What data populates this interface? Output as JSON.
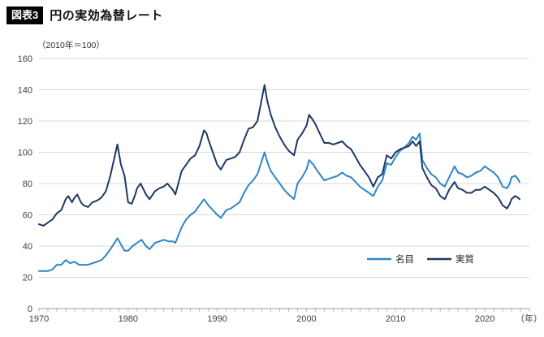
{
  "header": {
    "badge": "図表3",
    "title": "円の実効為替レート"
  },
  "chart_data": {
    "type": "line",
    "title": "円の実効為替レート",
    "subtitle_unit": "（2010年＝100）",
    "x_unit_label": "（年）",
    "xlim": [
      1970,
      2025
    ],
    "ylim": [
      0,
      160
    ],
    "y_ticks": [
      0,
      20,
      40,
      60,
      80,
      100,
      120,
      140,
      160
    ],
    "x_tick_labels": [
      1970,
      1980,
      1990,
      2000,
      2010,
      2020
    ],
    "grid": true,
    "legend": {
      "position": "inside-right",
      "items": [
        "名目",
        "実質"
      ]
    },
    "series": [
      {
        "name": "名目",
        "color": "#2E86C6",
        "points": [
          [
            1970.0,
            24
          ],
          [
            1970.5,
            24
          ],
          [
            1971.0,
            24
          ],
          [
            1971.5,
            25
          ],
          [
            1972.0,
            28
          ],
          [
            1972.5,
            28
          ],
          [
            1973.0,
            31
          ],
          [
            1973.5,
            29
          ],
          [
            1974.0,
            30
          ],
          [
            1974.5,
            28
          ],
          [
            1975.0,
            28
          ],
          [
            1975.5,
            28
          ],
          [
            1976.0,
            29
          ],
          [
            1976.5,
            30
          ],
          [
            1977.0,
            31
          ],
          [
            1977.5,
            34
          ],
          [
            1978.0,
            38
          ],
          [
            1978.8,
            45
          ],
          [
            1979.2,
            41
          ],
          [
            1979.6,
            37
          ],
          [
            1980.0,
            37
          ],
          [
            1980.5,
            40
          ],
          [
            1981.0,
            42
          ],
          [
            1981.5,
            44
          ],
          [
            1982.0,
            40
          ],
          [
            1982.4,
            38
          ],
          [
            1983.0,
            42
          ],
          [
            1983.5,
            43
          ],
          [
            1984.0,
            44
          ],
          [
            1984.5,
            43
          ],
          [
            1985.0,
            43
          ],
          [
            1985.3,
            42
          ],
          [
            1986.0,
            52
          ],
          [
            1986.5,
            57
          ],
          [
            1987.0,
            60
          ],
          [
            1987.5,
            62
          ],
          [
            1988.0,
            66
          ],
          [
            1988.5,
            70
          ],
          [
            1989.0,
            66
          ],
          [
            1989.5,
            63
          ],
          [
            1990.0,
            60
          ],
          [
            1990.4,
            58
          ],
          [
            1991.0,
            63
          ],
          [
            1991.5,
            64
          ],
          [
            1992.0,
            66
          ],
          [
            1992.5,
            68
          ],
          [
            1993.0,
            74
          ],
          [
            1993.5,
            79
          ],
          [
            1994.0,
            82
          ],
          [
            1994.5,
            86
          ],
          [
            1995.3,
            100
          ],
          [
            1995.6,
            94
          ],
          [
            1996.0,
            88
          ],
          [
            1996.5,
            84
          ],
          [
            1997.0,
            80
          ],
          [
            1997.5,
            76
          ],
          [
            1998.0,
            73
          ],
          [
            1998.6,
            70
          ],
          [
            1999.0,
            80
          ],
          [
            1999.5,
            84
          ],
          [
            2000.0,
            89
          ],
          [
            2000.3,
            95
          ],
          [
            2000.8,
            92
          ],
          [
            2001.0,
            90
          ],
          [
            2001.5,
            86
          ],
          [
            2002.0,
            82
          ],
          [
            2002.5,
            83
          ],
          [
            2003.0,
            84
          ],
          [
            2003.5,
            85
          ],
          [
            2004.0,
            87
          ],
          [
            2004.5,
            85
          ],
          [
            2005.0,
            84
          ],
          [
            2005.5,
            81
          ],
          [
            2006.0,
            78
          ],
          [
            2006.5,
            76
          ],
          [
            2007.0,
            74
          ],
          [
            2007.5,
            72
          ],
          [
            2008.0,
            78
          ],
          [
            2008.5,
            82
          ],
          [
            2009.0,
            93
          ],
          [
            2009.5,
            92
          ],
          [
            2010.0,
            97
          ],
          [
            2010.5,
            101
          ],
          [
            2011.0,
            103
          ],
          [
            2011.5,
            106
          ],
          [
            2011.9,
            110
          ],
          [
            2012.3,
            108
          ],
          [
            2012.7,
            112
          ],
          [
            2013.0,
            95
          ],
          [
            2013.5,
            90
          ],
          [
            2014.0,
            86
          ],
          [
            2014.5,
            84
          ],
          [
            2015.0,
            80
          ],
          [
            2015.5,
            78
          ],
          [
            2016.0,
            84
          ],
          [
            2016.6,
            91
          ],
          [
            2017.0,
            87
          ],
          [
            2017.5,
            86
          ],
          [
            2018.0,
            84
          ],
          [
            2018.5,
            85
          ],
          [
            2019.0,
            87
          ],
          [
            2019.5,
            88
          ],
          [
            2020.0,
            91
          ],
          [
            2020.5,
            89
          ],
          [
            2021.0,
            87
          ],
          [
            2021.5,
            84
          ],
          [
            2022.0,
            78
          ],
          [
            2022.5,
            77
          ],
          [
            2022.8,
            80
          ],
          [
            2023.0,
            84
          ],
          [
            2023.4,
            85
          ],
          [
            2023.7,
            83
          ],
          [
            2023.9,
            81
          ]
        ]
      },
      {
        "name": "実質",
        "color": "#1F3864",
        "points": [
          [
            1970.0,
            54
          ],
          [
            1970.5,
            53
          ],
          [
            1971.0,
            55
          ],
          [
            1971.5,
            57
          ],
          [
            1972.0,
            61
          ],
          [
            1972.5,
            63
          ],
          [
            1973.0,
            70
          ],
          [
            1973.3,
            72
          ],
          [
            1973.7,
            68
          ],
          [
            1974.0,
            71
          ],
          [
            1974.3,
            73
          ],
          [
            1974.7,
            68
          ],
          [
            1975.0,
            66
          ],
          [
            1975.5,
            65
          ],
          [
            1976.0,
            68
          ],
          [
            1976.5,
            69
          ],
          [
            1977.0,
            71
          ],
          [
            1977.5,
            75
          ],
          [
            1978.0,
            85
          ],
          [
            1978.8,
            105
          ],
          [
            1979.2,
            92
          ],
          [
            1979.6,
            85
          ],
          [
            1980.0,
            68
          ],
          [
            1980.4,
            67
          ],
          [
            1980.8,
            73
          ],
          [
            1981.0,
            77
          ],
          [
            1981.4,
            80
          ],
          [
            1982.0,
            73
          ],
          [
            1982.4,
            70
          ],
          [
            1983.0,
            75
          ],
          [
            1983.5,
            77
          ],
          [
            1984.0,
            78
          ],
          [
            1984.4,
            80
          ],
          [
            1985.0,
            76
          ],
          [
            1985.3,
            73
          ],
          [
            1986.0,
            88
          ],
          [
            1986.5,
            92
          ],
          [
            1987.0,
            96
          ],
          [
            1987.5,
            98
          ],
          [
            1988.0,
            104
          ],
          [
            1988.5,
            114
          ],
          [
            1988.8,
            112
          ],
          [
            1989.0,
            108
          ],
          [
            1989.5,
            100
          ],
          [
            1990.0,
            92
          ],
          [
            1990.4,
            89
          ],
          [
            1991.0,
            95
          ],
          [
            1991.5,
            96
          ],
          [
            1992.0,
            97
          ],
          [
            1992.5,
            100
          ],
          [
            1993.0,
            108
          ],
          [
            1993.5,
            115
          ],
          [
            1994.0,
            116
          ],
          [
            1994.5,
            120
          ],
          [
            1995.3,
            143
          ],
          [
            1995.6,
            133
          ],
          [
            1996.0,
            124
          ],
          [
            1996.5,
            116
          ],
          [
            1997.0,
            110
          ],
          [
            1997.5,
            105
          ],
          [
            1998.0,
            101
          ],
          [
            1998.6,
            98
          ],
          [
            1999.0,
            108
          ],
          [
            1999.5,
            112
          ],
          [
            2000.0,
            117
          ],
          [
            2000.3,
            124
          ],
          [
            2000.8,
            120
          ],
          [
            2001.0,
            118
          ],
          [
            2001.5,
            112
          ],
          [
            2002.0,
            106
          ],
          [
            2002.5,
            106
          ],
          [
            2003.0,
            105
          ],
          [
            2003.5,
            106
          ],
          [
            2004.0,
            107
          ],
          [
            2004.5,
            104
          ],
          [
            2005.0,
            102
          ],
          [
            2005.5,
            97
          ],
          [
            2006.0,
            92
          ],
          [
            2006.5,
            88
          ],
          [
            2007.0,
            84
          ],
          [
            2007.5,
            78
          ],
          [
            2008.0,
            84
          ],
          [
            2008.5,
            86
          ],
          [
            2009.0,
            98
          ],
          [
            2009.5,
            96
          ],
          [
            2010.0,
            100
          ],
          [
            2010.5,
            102
          ],
          [
            2011.0,
            103
          ],
          [
            2011.5,
            104
          ],
          [
            2011.9,
            107
          ],
          [
            2012.3,
            104
          ],
          [
            2012.7,
            107
          ],
          [
            2013.0,
            90
          ],
          [
            2013.5,
            84
          ],
          [
            2014.0,
            79
          ],
          [
            2014.5,
            77
          ],
          [
            2015.0,
            72
          ],
          [
            2015.5,
            70
          ],
          [
            2016.0,
            76
          ],
          [
            2016.6,
            81
          ],
          [
            2017.0,
            77
          ],
          [
            2017.5,
            76
          ],
          [
            2018.0,
            74
          ],
          [
            2018.5,
            74
          ],
          [
            2019.0,
            76
          ],
          [
            2019.5,
            76
          ],
          [
            2020.0,
            78
          ],
          [
            2020.5,
            76
          ],
          [
            2021.0,
            74
          ],
          [
            2021.5,
            71
          ],
          [
            2022.0,
            66
          ],
          [
            2022.5,
            64
          ],
          [
            2022.8,
            67
          ],
          [
            2023.0,
            70
          ],
          [
            2023.4,
            72
          ],
          [
            2023.7,
            71
          ],
          [
            2023.9,
            70
          ]
        ]
      }
    ]
  }
}
